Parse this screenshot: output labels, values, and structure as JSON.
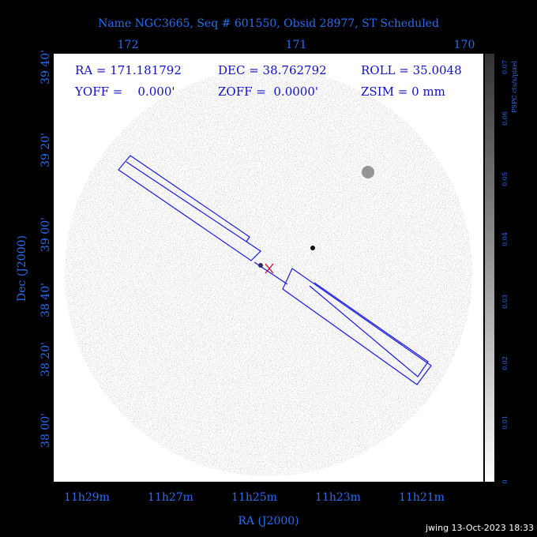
{
  "title": "Name NGC3665, Seq # 601550, Obsid 28977, ST Scheduled",
  "info": {
    "ra": "RA = 171.181792",
    "dec": "DEC = 38.762792",
    "roll": "ROLL = 35.0048",
    "yoff": "YOFF =    0.000'",
    "zoff": "ZOFF =  0.0000'",
    "zsim": "ZSIM = 0 mm"
  },
  "axes": {
    "top_ticks": [
      "172",
      "171",
      "170"
    ],
    "left_ticks": [
      "39 40'",
      "39 20'",
      "39 00'",
      "38 40'",
      "38 20'",
      "38 00'"
    ],
    "bottom_ticks": [
      "11h29m",
      "11h27m",
      "11h25m",
      "11h23m",
      "11h21m"
    ],
    "x_label": "RA (J2000)",
    "y_label": "Dec (J2000)"
  },
  "colorbar": {
    "label": "PSPC cts/s/pixel",
    "ticks": [
      "0",
      "0.01",
      "0.02",
      "0.03",
      "0.04",
      "0.05",
      "0.06",
      "0.07"
    ]
  },
  "footer": "jwing 13-Oct-2023 18:33"
}
